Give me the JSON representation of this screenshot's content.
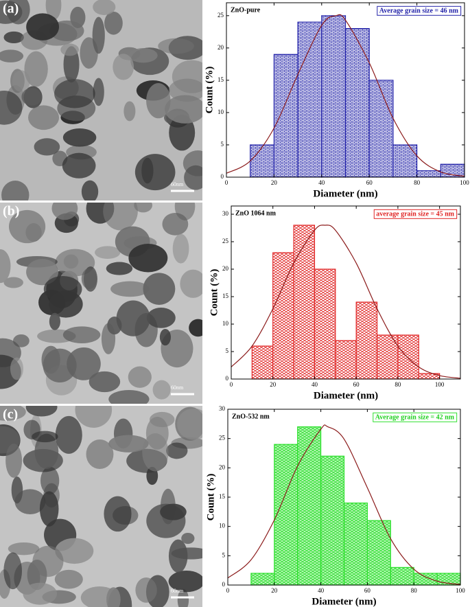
{
  "panels": [
    {
      "label": "(a)",
      "scale_bar": "60nm"
    },
    {
      "label": "(b)",
      "scale_bar": "60nm"
    },
    {
      "label": "(c)",
      "scale_bar": "60nm"
    }
  ],
  "chart_data": [
    {
      "type": "histogram",
      "title": "ZnO-pure",
      "annotation": "Average grain size = 46 nm",
      "xlabel": "Diameter (nm)",
      "ylabel": "Count (%)",
      "color": "#2121a8",
      "bins": [
        10,
        20,
        30,
        40,
        50,
        60,
        70,
        80,
        90,
        100
      ],
      "values": [
        5,
        19,
        24,
        25,
        23,
        15,
        5,
        1,
        2
      ],
      "curve": {
        "color": "#8b1a1a",
        "x": [
          0,
          10,
          20,
          30,
          40,
          46,
          50,
          60,
          70,
          80,
          90,
          100
        ],
        "y": [
          0.6,
          2.5,
          7.6,
          15.9,
          23.5,
          25,
          24.3,
          17.7,
          9.1,
          3.3,
          0.8,
          0.15
        ]
      },
      "xlim": [
        0,
        100
      ],
      "xticks": [
        0,
        20,
        40,
        60,
        80,
        100
      ],
      "ylim": [
        0,
        27
      ],
      "yticks": [
        0,
        5,
        10,
        15,
        20,
        25
      ]
    },
    {
      "type": "histogram",
      "title": "ZnO 1064 nm",
      "annotation": "average grain size = 45 nm",
      "xlabel": "Diameter (nm)",
      "ylabel": "Count (%)",
      "color": "#e02424",
      "bins": [
        10,
        20,
        30,
        40,
        50,
        60,
        70,
        80,
        90,
        100
      ],
      "values": [
        6,
        23,
        28,
        20,
        7,
        14,
        8,
        8,
        1
      ],
      "curve": {
        "color": "#8b1a1a",
        "x": [
          0,
          10,
          20,
          30,
          40,
          45,
          50,
          60,
          70,
          80,
          90,
          100,
          110
        ],
        "y": [
          2.2,
          6.0,
          12.8,
          21.1,
          27.1,
          28,
          27.1,
          21.1,
          12.8,
          6.0,
          2.2,
          0.63,
          0.14
        ]
      },
      "xlim": [
        0,
        110
      ],
      "xticks": [
        0,
        20,
        40,
        60,
        80,
        100
      ],
      "ylim": [
        0,
        31.5
      ],
      "yticks": [
        0,
        5,
        10,
        15,
        20,
        25,
        30
      ]
    },
    {
      "type": "histogram",
      "title": "ZnO-532 nm",
      "annotation": "Average grain size = 42 nm",
      "xlabel": "Diameter (nm)",
      "ylabel": "Count (%)",
      "color": "#2ee02e",
      "bins": [
        10,
        20,
        30,
        40,
        50,
        60,
        70,
        80,
        90,
        100
      ],
      "values": [
        2,
        24,
        27,
        22,
        14,
        11,
        3,
        2,
        2
      ],
      "curve": {
        "color": "#8b1a1a",
        "x": [
          0,
          10,
          20,
          30,
          40,
          43,
          50,
          60,
          70,
          80,
          90,
          100
        ],
        "y": [
          1.2,
          4.3,
          11.1,
          20.3,
          26.6,
          27,
          24.9,
          16.6,
          7.9,
          2.7,
          0.66,
          0.11
        ]
      },
      "xlim": [
        0,
        100
      ],
      "xticks": [
        0,
        20,
        40,
        60,
        80,
        100
      ],
      "ylim": [
        0,
        30
      ],
      "yticks": [
        0,
        5,
        10,
        15,
        20,
        25,
        30
      ]
    }
  ]
}
